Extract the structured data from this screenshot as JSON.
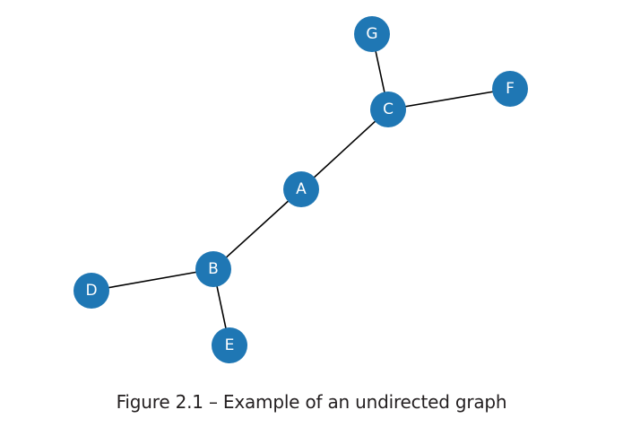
{
  "caption": "Figure 2.1 – Example of an undirected graph",
  "colors": {
    "node_fill": "#1f77b4",
    "node_label": "#ffffff",
    "edge": "#000000",
    "caption_text": "#231f20"
  },
  "graph": {
    "directed": false,
    "nodes": [
      "A",
      "B",
      "C",
      "D",
      "E",
      "F",
      "G"
    ],
    "edges": [
      [
        "A",
        "B"
      ],
      [
        "A",
        "C"
      ],
      [
        "B",
        "D"
      ],
      [
        "B",
        "E"
      ],
      [
        "C",
        "F"
      ],
      [
        "C",
        "G"
      ]
    ]
  }
}
